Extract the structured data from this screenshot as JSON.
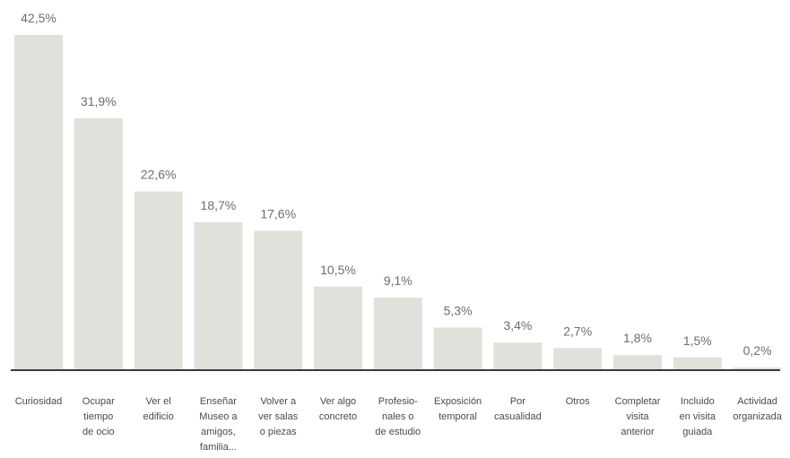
{
  "chart_data": {
    "type": "bar",
    "categories": [
      "Curiosidad",
      "Ocupar tiempo de ocio",
      "Ver el edificio",
      "Enseñar Museo a amigos, familia...",
      "Volver a ver salas o piezas",
      "Ver algo concreto",
      "Profesio- nales o de estudio",
      "Exposición temporal",
      "Por casualidad",
      "Otros",
      "Completar visita anterior",
      "Incluido en visita guiada",
      "Actividad organizada"
    ],
    "category_lines": [
      [
        "Curiosidad"
      ],
      [
        "Ocupar",
        "tiempo",
        "de ocio"
      ],
      [
        "Ver el",
        "edificio"
      ],
      [
        "Enseñar",
        "Museo a",
        "amigos,",
        "familia..."
      ],
      [
        "Volver a",
        "ver salas",
        "o piezas"
      ],
      [
        "Ver algo",
        "concreto"
      ],
      [
        "Profesio-",
        "nales o",
        "de estudio"
      ],
      [
        "Exposición",
        "temporal"
      ],
      [
        "Por",
        "casualidad"
      ],
      [
        "Otros"
      ],
      [
        "Completar",
        "visita",
        "anterior"
      ],
      [
        "Incluido",
        "en visita",
        "guiada"
      ],
      [
        "Actividad",
        "organizada"
      ]
    ],
    "values": [
      42.5,
      31.9,
      22.6,
      18.7,
      17.6,
      10.5,
      9.1,
      5.3,
      3.4,
      2.7,
      1.8,
      1.5,
      0.2
    ],
    "value_labels": [
      "42,5%",
      "31,9%",
      "22,6%",
      "18,7%",
      "17,6%",
      "10,5%",
      "9,1%",
      "5,3%",
      "3,4%",
      "2,7%",
      "1,8%",
      "1,5%",
      "0,2%"
    ],
    "title": "",
    "xlabel": "",
    "ylabel": "",
    "ylim": [
      0,
      42.5
    ],
    "grid": false,
    "legend": "none",
    "bar_color": "#dfe2da",
    "axis_color": "#3a3a3a"
  }
}
